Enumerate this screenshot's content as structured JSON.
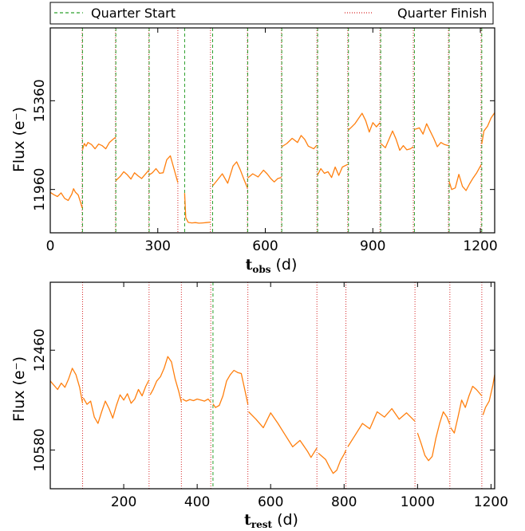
{
  "legend": [
    {
      "label": "Quarter Start",
      "color": "#2ca02c",
      "style": "dashed"
    },
    {
      "label": "Quarter Finish",
      "color": "#d62728",
      "style": "dotted"
    }
  ],
  "chart_data": [
    {
      "type": "line",
      "xlabel_main": "t",
      "xlabel_sub": "obs",
      "xlabel_unit": "(d)",
      "ylabel": "Flux (e⁻)",
      "xlim": [
        0,
        1240
      ],
      "ylim": [
        10300,
        18150
      ],
      "xticks": [
        0,
        300,
        600,
        900,
        1200
      ],
      "yticks": [
        11960,
        15360
      ],
      "series_color": "#ff7f0e",
      "quarter_starts": [
        90,
        183,
        276,
        375,
        453,
        551,
        646,
        746,
        832,
        922,
        1016,
        1113,
        1204
      ],
      "quarter_finishes": [
        89,
        182,
        275,
        356,
        447,
        550,
        645,
        744,
        830,
        920,
        1013,
        1111,
        1202
      ],
      "series": [
        {
          "x": [
            0,
            10,
            20,
            30,
            40,
            50,
            60,
            65,
            70,
            78,
            85,
            89
          ],
          "y": [
            11850,
            11760,
            11690,
            11830,
            11620,
            11540,
            11780,
            11990,
            11860,
            11750,
            11450,
            11250
          ]
        },
        {
          "x": [
            90,
            95,
            100,
            105,
            115,
            125,
            135,
            145,
            155,
            165,
            175,
            182
          ],
          "y": [
            13480,
            13720,
            13620,
            13760,
            13680,
            13520,
            13700,
            13640,
            13520,
            13760,
            13880,
            13960
          ]
        },
        {
          "x": [
            183,
            195,
            205,
            215,
            225,
            235,
            245,
            255,
            265,
            275
          ],
          "y": [
            12300,
            12460,
            12640,
            12520,
            12360,
            12600,
            12480,
            12380,
            12540,
            12700
          ]
        },
        {
          "x": [
            276,
            285,
            295,
            305,
            315,
            325,
            335,
            345,
            356
          ],
          "y": [
            12520,
            12600,
            12760,
            12580,
            12600,
            13100,
            13250,
            12760,
            12220
          ]
        },
        {
          "x": [
            375,
            378,
            385,
            395,
            405,
            415,
            425,
            435,
            447
          ],
          "y": [
            11820,
            10880,
            10700,
            10680,
            10690,
            10670,
            10680,
            10690,
            10710
          ]
        },
        {
          "x": [
            453,
            465,
            480,
            495,
            510,
            520,
            530,
            540,
            550
          ],
          "y": [
            12100,
            12300,
            12560,
            12200,
            12860,
            13020,
            12720,
            12360,
            12020
          ]
        },
        {
          "x": [
            551,
            565,
            580,
            595,
            605,
            615,
            625,
            635,
            645
          ],
          "y": [
            12400,
            12560,
            12440,
            12700,
            12560,
            12380,
            12250,
            12380,
            12420
          ]
        },
        {
          "x": [
            646,
            660,
            675,
            690,
            700,
            710,
            720,
            735,
            744
          ],
          "y": [
            13600,
            13720,
            13920,
            13760,
            14030,
            13880,
            13620,
            13520,
            13660
          ]
        },
        {
          "x": [
            746,
            755,
            765,
            775,
            785,
            795,
            805,
            815,
            830
          ],
          "y": [
            12520,
            12760,
            12580,
            12640,
            12420,
            12820,
            12500,
            12820,
            12920
          ]
        },
        {
          "x": [
            832,
            840,
            850,
            860,
            870,
            880,
            890,
            900,
            910,
            920
          ],
          "y": [
            14240,
            14340,
            14480,
            14680,
            14880,
            14600,
            14160,
            14520,
            14360,
            14520
          ]
        },
        {
          "x": [
            922,
            935,
            945,
            955,
            965,
            975,
            985,
            995,
            1005,
            1013
          ],
          "y": [
            13720,
            13560,
            13880,
            14200,
            13880,
            13460,
            13640,
            13480,
            13520,
            13600
          ]
        },
        {
          "x": [
            1016,
            1030,
            1040,
            1050,
            1060,
            1070,
            1080,
            1090,
            1100,
            1111
          ],
          "y": [
            14260,
            14320,
            14080,
            14480,
            14200,
            13920,
            13600,
            13760,
            13680,
            13640
          ]
        },
        {
          "x": [
            1113,
            1120,
            1130,
            1140,
            1150,
            1160,
            1170,
            1180,
            1190,
            1202
          ],
          "y": [
            12260,
            11960,
            12020,
            12540,
            12080,
            11920,
            12180,
            12400,
            12600,
            12900
          ]
        },
        {
          "x": [
            1204,
            1210,
            1220,
            1230,
            1240
          ],
          "y": [
            13700,
            14200,
            14380,
            14700,
            14900
          ]
        }
      ]
    },
    {
      "type": "line",
      "xlabel_main": "t",
      "xlabel_sub": "rest",
      "xlabel_unit": "(d)",
      "ylabel": "Flux (e⁻)",
      "xlim": [
        0,
        1210
      ],
      "ylim": [
        9850,
        13740
      ],
      "xticks": [
        200,
        400,
        600,
        800,
        1000,
        1200
      ],
      "yticks": [
        10580,
        12460
      ],
      "series_color": "#ff7f0e",
      "quarter_starts": [
        443
      ],
      "quarter_finishes": [
        88,
        269,
        357,
        437,
        538,
        726,
        805,
        993,
        1088,
        1175
      ],
      "series": [
        {
          "x": [
            0,
            10,
            20,
            30,
            40,
            50,
            60,
            70,
            80,
            88
          ],
          "y": [
            11880,
            11800,
            11720,
            11840,
            11760,
            11920,
            12120,
            12000,
            11760,
            11460
          ]
        },
        {
          "x": [
            90,
            100,
            110,
            120,
            130,
            140,
            150,
            160,
            170,
            180,
            190,
            200,
            210,
            220,
            230,
            240,
            250,
            260,
            269
          ],
          "y": [
            11560,
            11440,
            11500,
            11200,
            11080,
            11300,
            11500,
            11360,
            11180,
            11420,
            11620,
            11520,
            11640,
            11460,
            11540,
            11720,
            11600,
            11780,
            11900
          ]
        },
        {
          "x": [
            272,
            280,
            290,
            300,
            310,
            320,
            330,
            340,
            350,
            357
          ],
          "y": [
            11620,
            11720,
            11880,
            11960,
            12120,
            12340,
            12240,
            11920,
            11680,
            11480
          ]
        },
        {
          "x": [
            360,
            370,
            380,
            390,
            400,
            410,
            420,
            430,
            437
          ],
          "y": [
            11540,
            11500,
            11530,
            11510,
            11540,
            11520,
            11500,
            11540,
            11480
          ]
        },
        {
          "x": [
            443,
            450,
            460,
            470,
            480,
            490,
            500,
            510,
            520,
            530,
            538
          ],
          "y": [
            11450,
            11380,
            11420,
            11600,
            11880,
            12000,
            12080,
            12040,
            12020,
            11700,
            11440
          ]
        },
        {
          "x": [
            540,
            560,
            580,
            600,
            620,
            640,
            660,
            680,
            700,
            710,
            726
          ],
          "y": [
            11300,
            11160,
            11000,
            11280,
            11080,
            10860,
            10640,
            10760,
            10560,
            10440,
            10620
          ]
        },
        {
          "x": [
            730,
            740,
            750,
            760,
            770,
            780,
            790,
            800,
            805
          ],
          "y": [
            10520,
            10460,
            10400,
            10260,
            10140,
            10200,
            10380,
            10500,
            10580
          ]
        },
        {
          "x": [
            810,
            830,
            850,
            870,
            890,
            910,
            930,
            950,
            970,
            993
          ],
          "y": [
            10640,
            10860,
            11080,
            10980,
            11300,
            11200,
            11360,
            11160,
            11280,
            11120
          ]
        },
        {
          "x": [
            1000,
            1010,
            1020,
            1030,
            1040,
            1050,
            1060,
            1070,
            1080,
            1088
          ],
          "y": [
            10900,
            10700,
            10480,
            10380,
            10460,
            10800,
            11080,
            11300,
            11200,
            11060
          ]
        },
        {
          "x": [
            1090,
            1100,
            1110,
            1120,
            1130,
            1140,
            1150,
            1160,
            1175
          ],
          "y": [
            11000,
            10900,
            11200,
            11520,
            11380,
            11600,
            11780,
            11720,
            11600
          ]
        },
        {
          "x": [
            1178,
            1185,
            1195,
            1205,
            1210
          ],
          "y": [
            11240,
            11380,
            11500,
            11800,
            12000
          ]
        }
      ]
    }
  ]
}
